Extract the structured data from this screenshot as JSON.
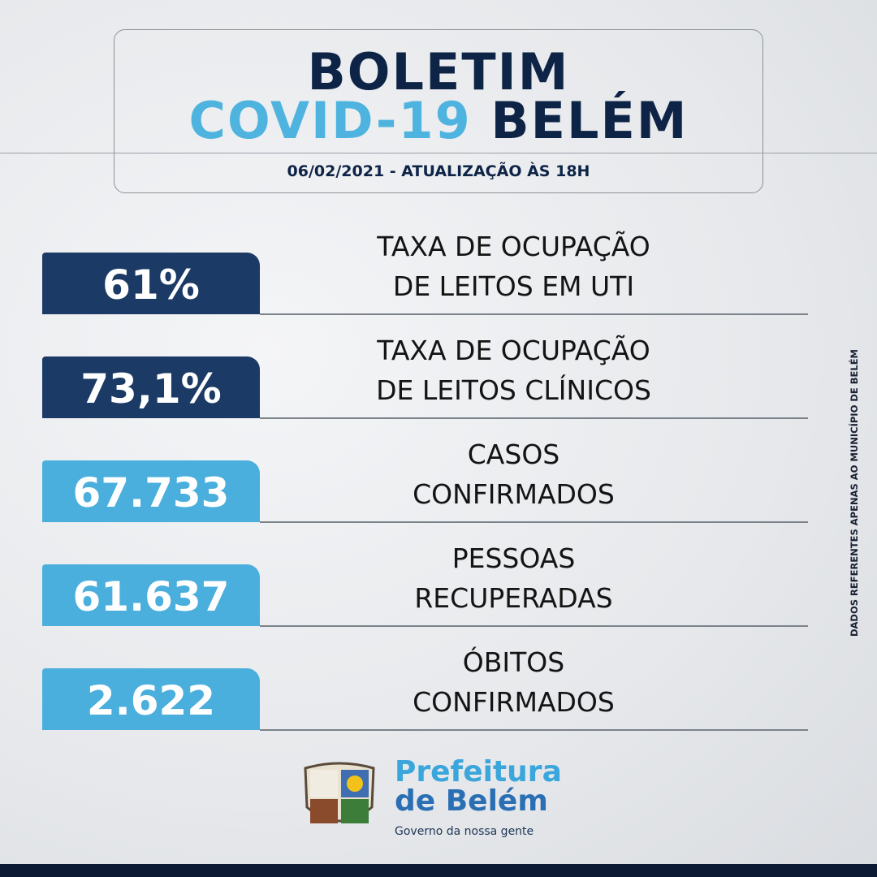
{
  "header": {
    "title_line1": "BOLETIM",
    "title_covid": "COVID-19",
    "title_city": "BELÉM",
    "date": "06/02/2021 - ATUALIZAÇÃO ÀS 18H"
  },
  "stats": [
    {
      "value": "61%",
      "label": [
        "TAXA DE OCUPAÇÃO",
        "DE LEITOS EM UTI"
      ]
    },
    {
      "value": "73,1%",
      "label": [
        "TAXA DE OCUPAÇÃO",
        "DE LEITOS CLÍNICOS"
      ]
    },
    {
      "value": "67.733",
      "label": [
        "CASOS",
        "CONFIRMADOS"
      ]
    },
    {
      "value": "61.637",
      "label": [
        "PESSOAS",
        "RECUPERADAS"
      ]
    },
    {
      "value": "2.622",
      "label": [
        "ÓBITOS",
        "CONFIRMADOS"
      ]
    }
  ],
  "side_note": "DADOS REFERENTES APENAS AO MUNICÍPIO DE BELÉM",
  "logo": {
    "line1": "Prefeitura",
    "line2": "de Belém",
    "tagline": "Governo da nossa gente"
  }
}
